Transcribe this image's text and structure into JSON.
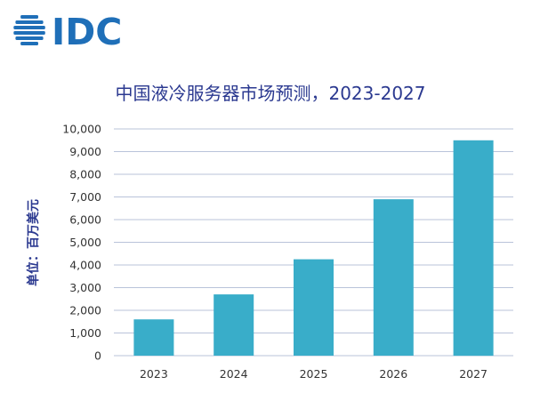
{
  "logo": {
    "text": "IDC",
    "color": "#1F6FB8",
    "icon": "globe-icon"
  },
  "colors": {
    "bar": "#39ADC9",
    "grid": "#B9C3DA",
    "title": "#2B3990",
    "axis_label": "#2B3990",
    "tick_text": "#333333"
  },
  "chart_data": {
    "type": "bar",
    "title": "中国液冷服务器市场预测，2023-2027",
    "xlabel": "",
    "ylabel": "单位：百万美元",
    "categories": [
      "2023",
      "2024",
      "2025",
      "2026",
      "2027"
    ],
    "values": [
      1600,
      2700,
      4250,
      6900,
      9500
    ],
    "ylim": [
      0,
      10000
    ],
    "yticks": [
      0,
      1000,
      2000,
      3000,
      4000,
      5000,
      6000,
      7000,
      8000,
      9000,
      10000
    ],
    "ytick_labels": [
      "0",
      "1,000",
      "2,000",
      "3,000",
      "4,000",
      "5,000",
      "6,000",
      "7,000",
      "8,000",
      "9,000",
      "10,000"
    ],
    "grid": true,
    "legend": "none"
  }
}
